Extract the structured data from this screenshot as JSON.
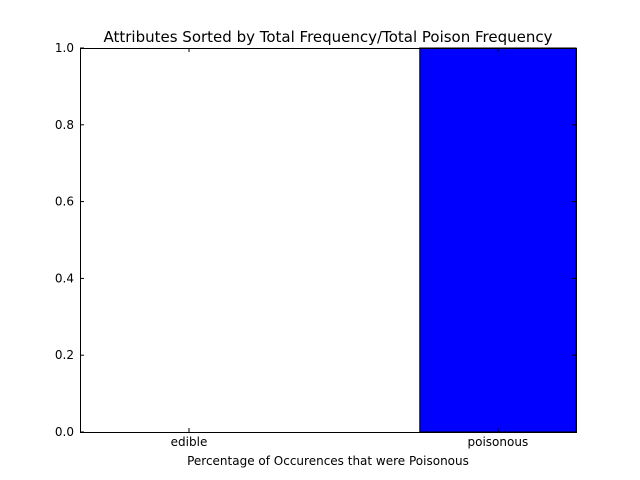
{
  "chart_data": {
    "type": "bar",
    "title": "Attributes Sorted by Total Frequency/Total Poison Frequency",
    "xlabel": "Percentage of Occurences that were Poisonous",
    "ylabel": "",
    "categories": [
      "edible",
      "poisonous"
    ],
    "values": [
      0.0,
      1.0
    ],
    "ylim": [
      0.0,
      1.0
    ],
    "yticks": [
      "0.0",
      "0.2",
      "0.4",
      "0.6",
      "0.8",
      "1.0"
    ],
    "bar_color": "#0000ff",
    "bar_edge_color": "#000000",
    "grid": false,
    "legend": "none"
  }
}
